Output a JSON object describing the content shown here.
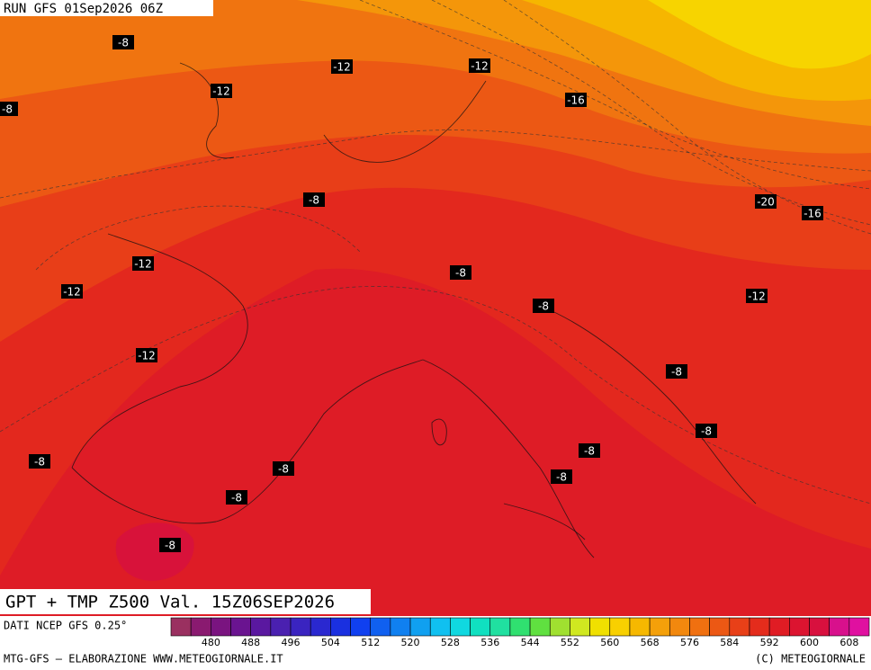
{
  "header": {
    "run": "RUN GFS 01Sep2026 06Z"
  },
  "map": {
    "title": "GPT + TMP Z500 Val. 15Z06SEP2026",
    "contour_labels": [
      "-8",
      "-12",
      "-12",
      "-12",
      "-8",
      "-16",
      "-8",
      "-20",
      "-16",
      "-12",
      "-12",
      "-8",
      "-12",
      "-8",
      "-12",
      "-8",
      "-8",
      "-8",
      "-8",
      "-8",
      "-8",
      "-8",
      "-8"
    ]
  },
  "colorbar": {
    "ticks": [
      480,
      488,
      496,
      504,
      512,
      520,
      528,
      536,
      544,
      552,
      560,
      568,
      576,
      584,
      592,
      600,
      608
    ],
    "colors": [
      "#9a3060",
      "#8a1a70",
      "#7a1480",
      "#6a1490",
      "#5a18a0",
      "#4a20b0",
      "#3a24c0",
      "#2a28d0",
      "#1a30e0",
      "#1040f0",
      "#1060f0",
      "#1080f0",
      "#10a0f0",
      "#10c0f0",
      "#10d8e0",
      "#10e0c0",
      "#20e0a0",
      "#30e070",
      "#60e040",
      "#a0e030",
      "#d0e820",
      "#f0e000",
      "#f8d000",
      "#f6b800",
      "#f4a00a",
      "#f2880e",
      "#f07010",
      "#ec5814",
      "#e84018",
      "#e42c1c",
      "#e01c24",
      "#dc1430",
      "#d8103e",
      "#d8108c",
      "#e010a0"
    ]
  },
  "footer": {
    "source": "DATI NCEP GFS 0.25°",
    "credit": "MTG-GFS — ELABORAZIONE WWW.METEOGIORNALE.IT",
    "copyright": "(C) METEOGIORNALE"
  }
}
